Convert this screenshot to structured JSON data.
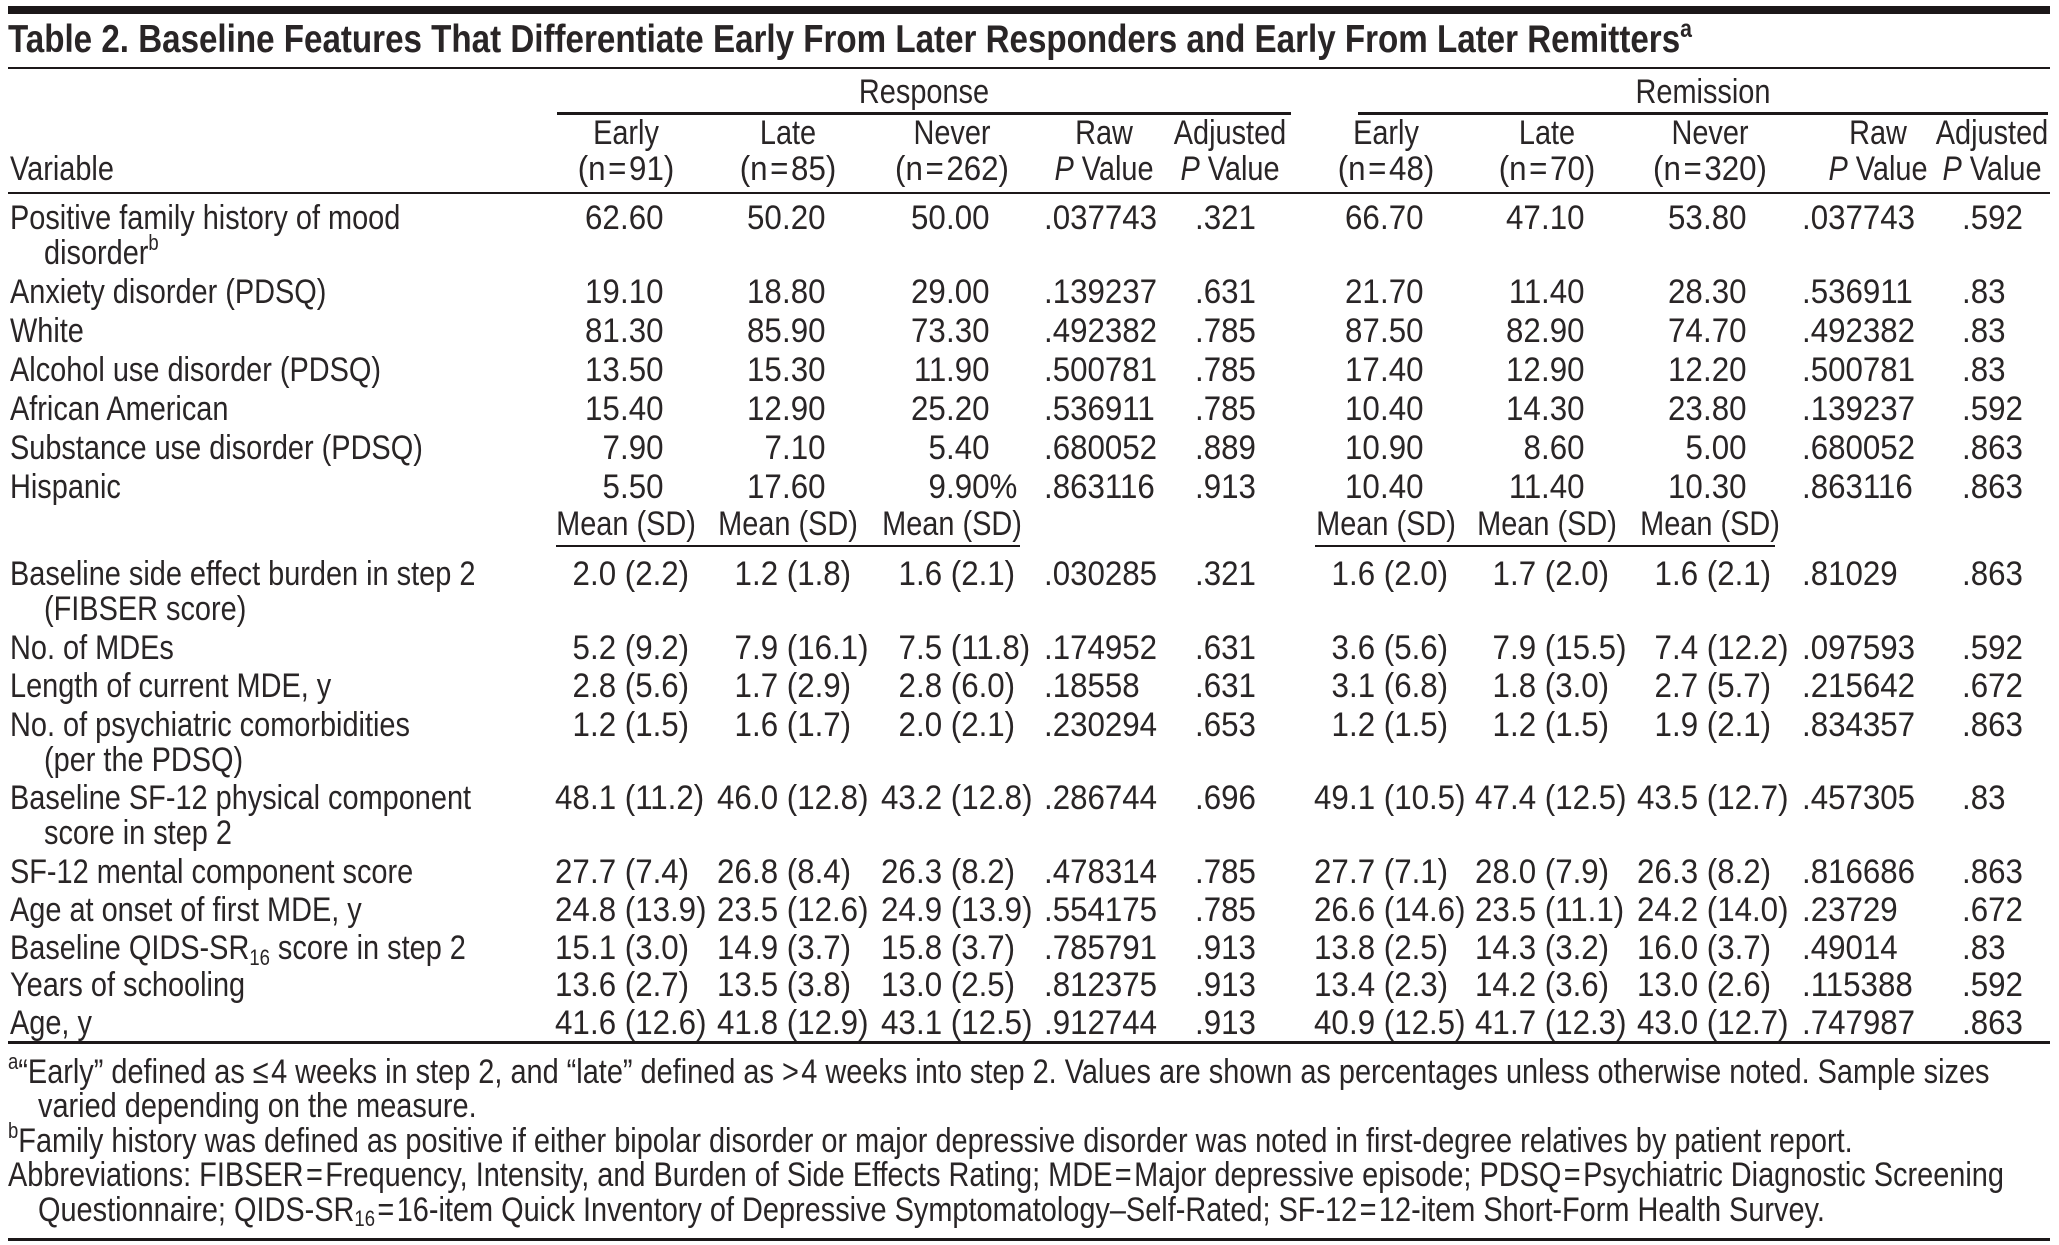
{
  "title": "Table 2. Baseline Features That Differentiate Early From Later Responders and Early From Later Remitters^{a}",
  "header": {
    "variable_label": "Variable",
    "groups": [
      {
        "label": "Response"
      },
      {
        "label": "Remission"
      }
    ],
    "columns": [
      {
        "line1": "Early",
        "line2": "(n = 91)"
      },
      {
        "line1": "Late",
        "line2": "(n = 85)"
      },
      {
        "line1": "Never",
        "line2": "(n = 262)"
      },
      {
        "line1": "Raw",
        "line2": "*P* Value"
      },
      {
        "line1": "Adjusted",
        "line2": "*P* Value"
      },
      {
        "line1": "Early",
        "line2": "(n = 48)"
      },
      {
        "line1": "Late",
        "line2": "(n = 70)"
      },
      {
        "line1": "Never",
        "line2": "(n = 320)"
      },
      {
        "line1": "Raw",
        "line2": "*P* Value"
      },
      {
        "line1": "Adjusted",
        "line2": "*P* Value"
      }
    ],
    "mean_sd_label": "Mean (SD)"
  },
  "rows_percent": [
    {
      "label_lines": [
        "Positive family history of mood",
        "disorder^{b}"
      ],
      "values": [
        "62.60",
        "50.20",
        "50.00",
        ".037743",
        ".321",
        "66.70",
        "47.10",
        "53.80",
        ".037743",
        ".592"
      ]
    },
    {
      "label_lines": [
        "Anxiety disorder (PDSQ)"
      ],
      "values": [
        "19.10",
        "18.80",
        "29.00",
        ".139237",
        ".631",
        "21.70",
        "11.40",
        "28.30",
        ".536911",
        ".83"
      ]
    },
    {
      "label_lines": [
        "White"
      ],
      "values": [
        "81.30",
        "85.90",
        "73.30",
        ".492382",
        ".785",
        "87.50",
        "82.90",
        "74.70",
        ".492382",
        ".83"
      ]
    },
    {
      "label_lines": [
        "Alcohol use disorder (PDSQ)"
      ],
      "values": [
        "13.50",
        "15.30",
        "11.90",
        ".500781",
        ".785",
        "17.40",
        "12.90",
        "12.20",
        ".500781",
        ".83"
      ]
    },
    {
      "label_lines": [
        "African American"
      ],
      "values": [
        "15.40",
        "12.90",
        "25.20",
        ".536911",
        ".785",
        "10.40",
        "14.30",
        "23.80",
        ".139237",
        ".592"
      ]
    },
    {
      "label_lines": [
        "Substance use disorder (PDSQ)"
      ],
      "values": [
        "7.90",
        "7.10",
        "5.40",
        ".680052",
        ".889",
        "10.90",
        "8.60",
        "5.00",
        ".680052",
        ".863"
      ]
    },
    {
      "label_lines": [
        "Hispanic"
      ],
      "values": [
        "5.50",
        "17.60",
        "9.90%",
        ".863116",
        ".913",
        "10.40",
        "11.40",
        "10.30",
        ".863116",
        ".863"
      ]
    }
  ],
  "rows_mean": [
    {
      "label_lines": [
        "Baseline side effect burden in step 2",
        "(FIBSER score)"
      ],
      "values": [
        "2.0 (2.2)",
        "1.2 (1.8)",
        "1.6 (2.1)",
        ".030285",
        ".321",
        "1.6 (2.0)",
        "1.7 (2.0)",
        "1.6 (2.1)",
        ".81029",
        ".863"
      ]
    },
    {
      "label_lines": [
        "No. of MDEs"
      ],
      "values": [
        "5.2 (9.2)",
        "7.9 (16.1)",
        "7.5 (11.8)",
        ".174952",
        ".631",
        "3.6 (5.6)",
        "7.9 (15.5)",
        "7.4 (12.2)",
        ".097593",
        ".592"
      ]
    },
    {
      "label_lines": [
        "Length of current MDE, y"
      ],
      "values": [
        "2.8 (5.6)",
        "1.7 (2.9)",
        "2.8 (6.0)",
        ".18558",
        ".631",
        "3.1 (6.8)",
        "1.8 (3.0)",
        "2.7 (5.7)",
        ".215642",
        ".672"
      ]
    },
    {
      "label_lines": [
        "No. of psychiatric comorbidities",
        "(per the PDSQ)"
      ],
      "values": [
        "1.2 (1.5)",
        "1.6 (1.7)",
        "2.0 (2.1)",
        ".230294",
        ".653",
        "1.2 (1.5)",
        "1.2 (1.5)",
        "1.9 (2.1)",
        ".834357",
        ".863"
      ]
    },
    {
      "label_lines": [
        "Baseline SF-12 physical component",
        "score in step 2"
      ],
      "values": [
        "48.1 (11.2)",
        "46.0 (12.8)",
        "43.2 (12.8)",
        ".286744",
        ".696",
        "49.1 (10.5)",
        "47.4 (12.5)",
        "43.5 (12.7)",
        ".457305",
        ".83"
      ]
    },
    {
      "label_lines": [
        "SF-12 mental component score"
      ],
      "values": [
        "27.7 (7.4)",
        "26.8 (8.4)",
        "26.3 (8.2)",
        ".478314",
        ".785",
        "27.7 (7.1)",
        "28.0 (7.9)",
        "26.3 (8.2)",
        ".816686",
        ".863"
      ]
    },
    {
      "label_lines": [
        "Age at onset of first MDE, y"
      ],
      "values": [
        "24.8 (13.9)",
        "23.5 (12.6)",
        "24.9 (13.9)",
        ".554175",
        ".785",
        "26.6 (14.6)",
        "23.5 (11.1)",
        "24.2 (14.0)",
        ".23729",
        ".672"
      ]
    },
    {
      "label_lines": [
        "Baseline QIDS-SR~{16} score in step 2"
      ],
      "values": [
        "15.1 (3.0)",
        "14.9 (3.7)",
        "15.8 (3.7)",
        ".785791",
        ".913",
        "13.8 (2.5)",
        "14.3 (3.2)",
        "16.0 (3.7)",
        ".49014",
        ".83"
      ]
    },
    {
      "label_lines": [
        "Years of schooling"
      ],
      "values": [
        "13.6 (2.7)",
        "13.5 (3.8)",
        "13.0 (2.5)",
        ".812375",
        ".913",
        "13.4 (2.3)",
        "14.2 (3.6)",
        "13.0 (2.6)",
        ".115388",
        ".592"
      ]
    },
    {
      "label_lines": [
        "Age, y"
      ],
      "values": [
        "41.6 (12.6)",
        "41.8 (12.9)",
        "43.1 (12.5)",
        ".912744",
        ".913",
        "40.9 (12.5)",
        "41.7 (12.3)",
        "43.0 (12.7)",
        ".747987",
        ".863"
      ]
    }
  ],
  "footnotes": [
    {
      "lines": [
        "^{a}“Early” defined as ≤ 4 weeks in step 2, and “late” defined as > 4 weeks into step 2. Values are shown as percentages unless otherwise noted. Sample sizes",
        "varied depending on the measure."
      ]
    },
    {
      "lines": [
        "^{b}Family history was defined as positive if either bipolar disorder or major depressive disorder was noted in first-degree relatives by patient report."
      ]
    },
    {
      "lines": [
        "Abbreviations: FIBSER = Frequency, Intensity, and Burden of Side Effects Rating; MDE = Major depressive episode; PDSQ = Psychiatric Diagnostic Screening",
        "Questionnaire; QIDS-SR~{16} = 16-item Quick Inventory of Depressive Symptomatology–Self-Rated; SF-12 = 12-item Short-Form Health Survey."
      ]
    }
  ]
}
